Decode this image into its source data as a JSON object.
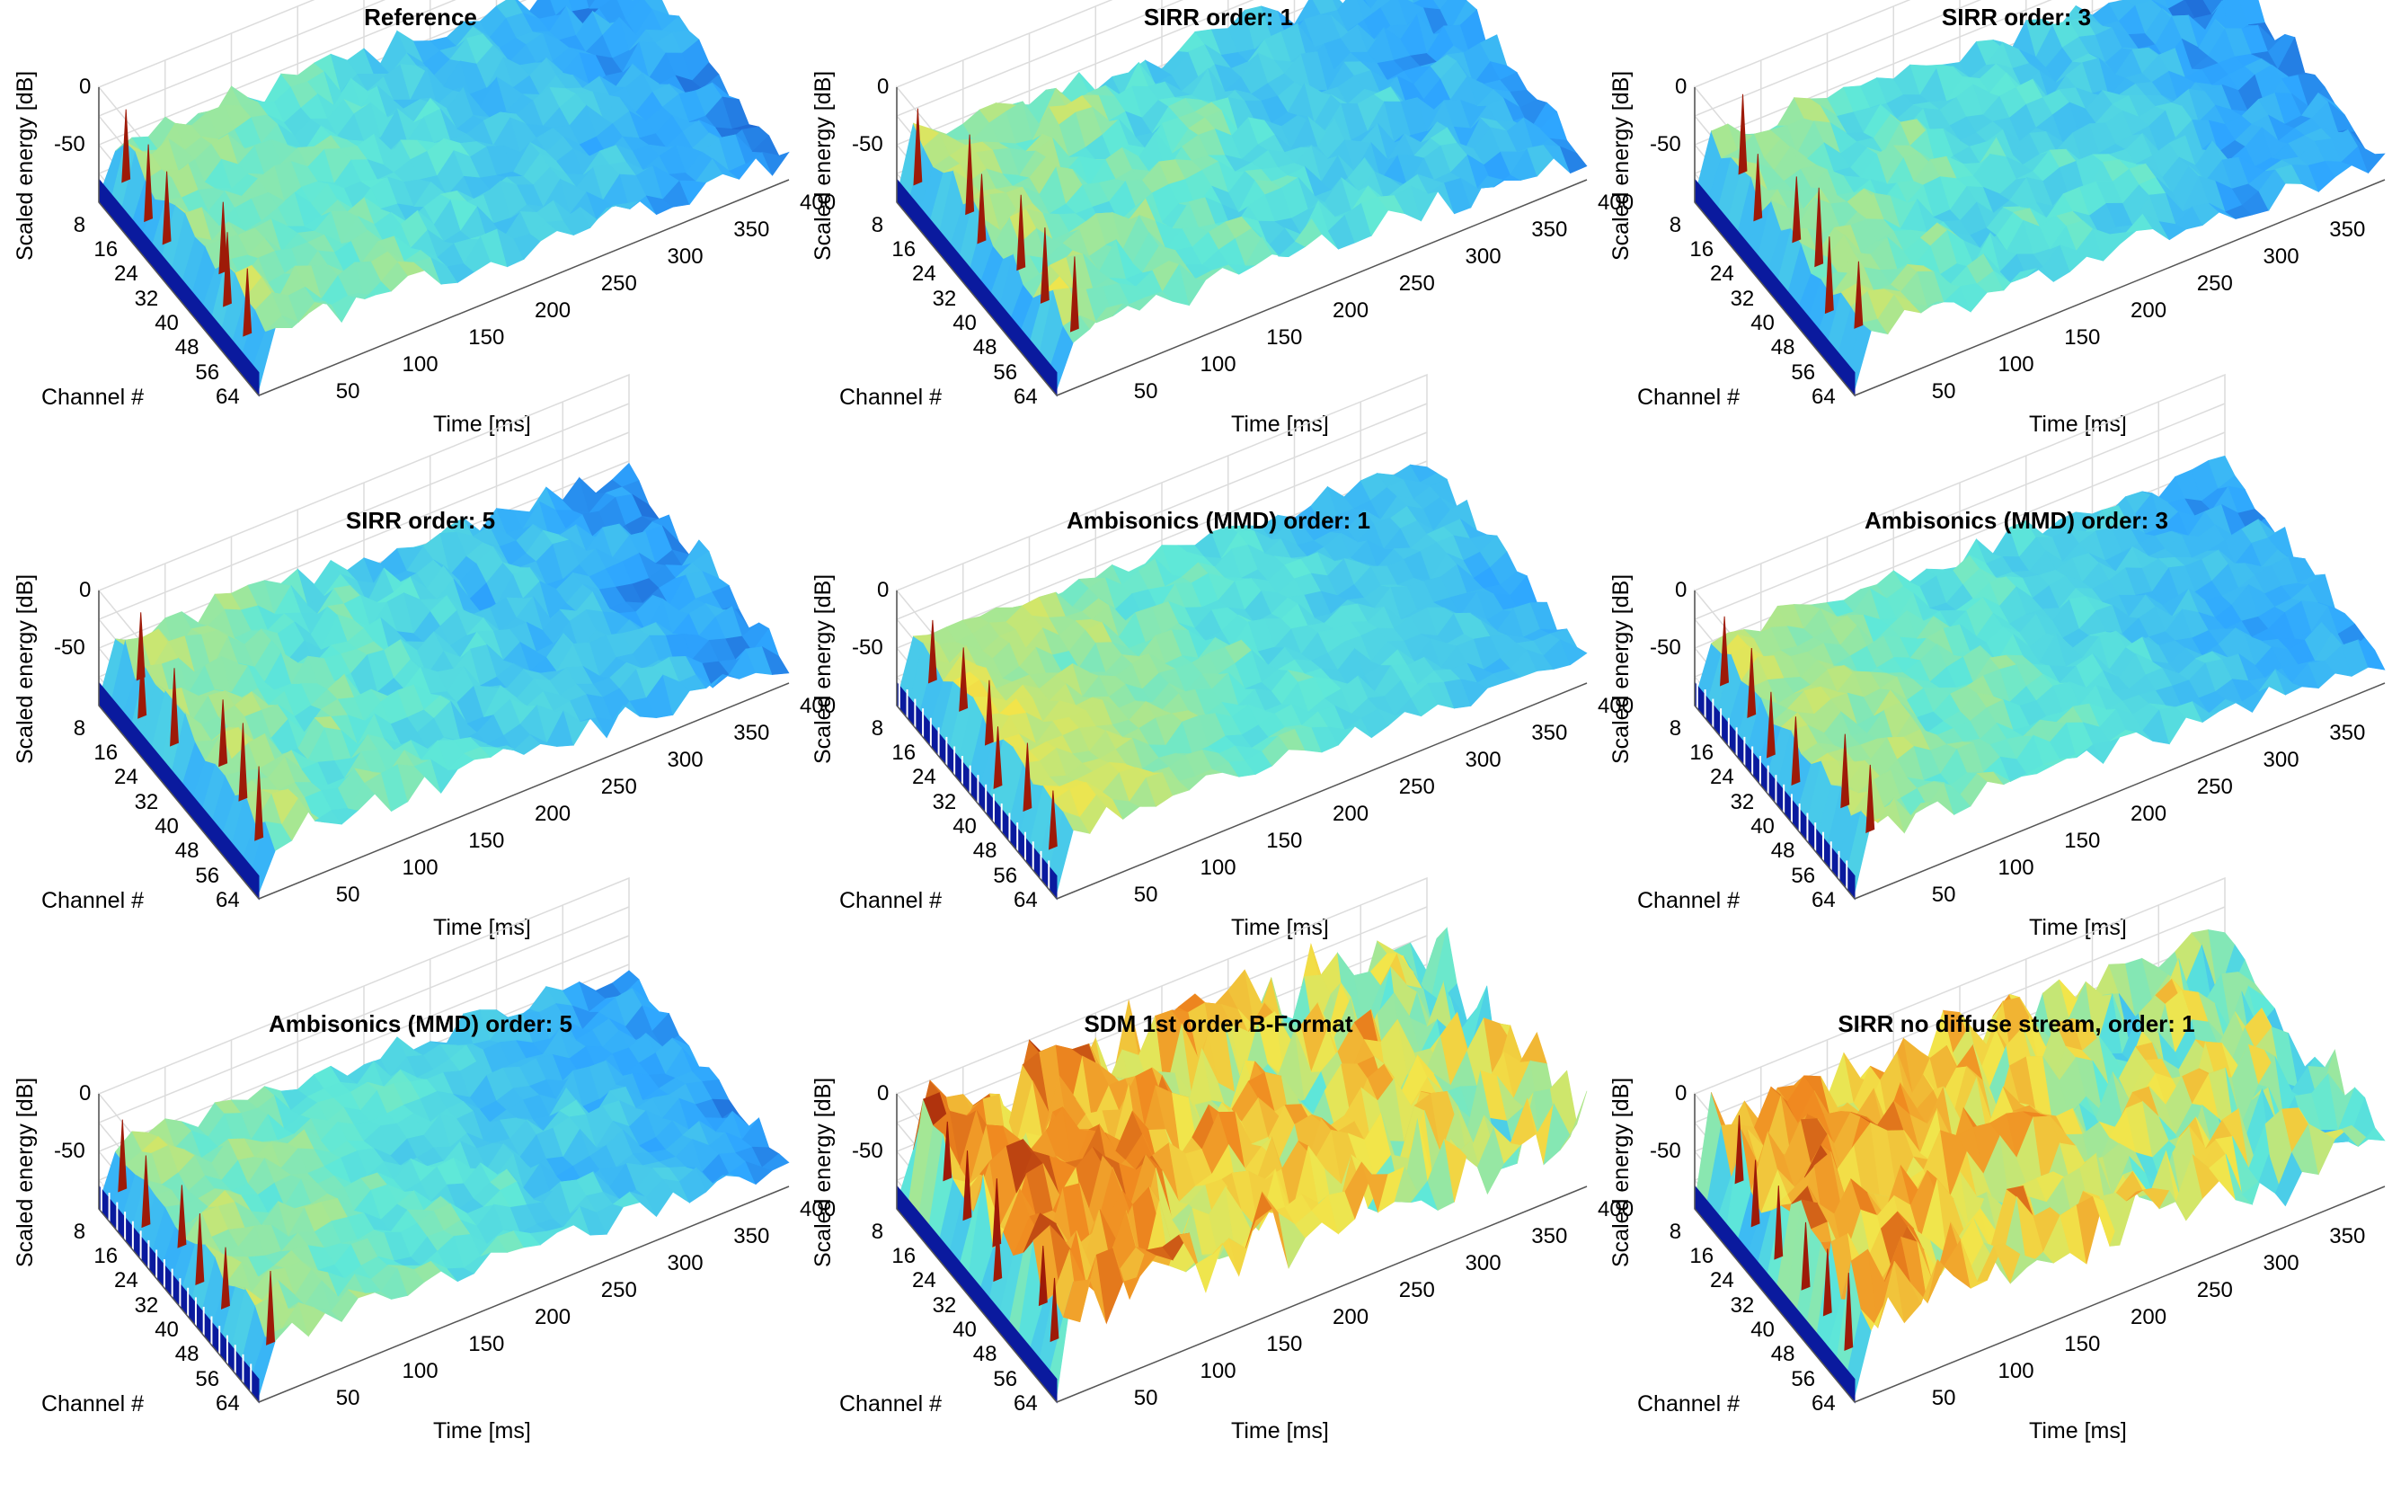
{
  "figure": {
    "colors": {
      "low": "#0a1a9e",
      "mid_low": "#2ea6ff",
      "mid": "#5fe8d8",
      "mid_high": "#f2e54a",
      "high": "#f08a20",
      "peak": "#9e1a08",
      "grid": "#dcdcdc",
      "axis": "#555555"
    }
  },
  "chart_data": [
    {
      "type": "surface",
      "title": "Reference",
      "xlabel": "Time [ms]",
      "ylabel": "Scaled energy [dB]",
      "channel_label": "Channel #",
      "x_ticks": [
        "50",
        "100",
        "150",
        "200",
        "250",
        "300",
        "350",
        "400"
      ],
      "channel_ticks": [
        "8",
        "16",
        "24",
        "32",
        "40",
        "48",
        "56",
        "64"
      ],
      "z_ticks": [
        "0",
        "-50"
      ],
      "xlim": [
        0,
        400
      ],
      "channel_range": [
        1,
        64
      ],
      "zlim": [
        -100,
        0
      ],
      "level": 0.5,
      "variance": 0.12,
      "peaks": 0.85,
      "direct_gaps": 0
    },
    {
      "type": "surface",
      "title": "SIRR order: 1",
      "xlabel": "Time [ms]",
      "ylabel": "Scaled energy [dB]",
      "channel_label": "Channel #",
      "x_ticks": [
        "50",
        "100",
        "150",
        "200",
        "250",
        "300",
        "350",
        "400"
      ],
      "channel_ticks": [
        "8",
        "16",
        "24",
        "32",
        "40",
        "48",
        "56",
        "64"
      ],
      "z_ticks": [
        "0",
        "-50"
      ],
      "xlim": [
        0,
        400
      ],
      "channel_range": [
        1,
        64
      ],
      "zlim": [
        -100,
        0
      ],
      "level": 0.52,
      "variance": 0.14,
      "peaks": 0.85,
      "direct_gaps": 0
    },
    {
      "type": "surface",
      "title": "SIRR order: 3",
      "xlabel": "Time [ms]",
      "ylabel": "Scaled energy [dB]",
      "channel_label": "Channel #",
      "x_ticks": [
        "50",
        "100",
        "150",
        "200",
        "250",
        "300",
        "350",
        "400"
      ],
      "channel_ticks": [
        "8",
        "16",
        "24",
        "32",
        "40",
        "48",
        "56",
        "64"
      ],
      "z_ticks": [
        "0",
        "-50"
      ],
      "xlim": [
        0,
        400
      ],
      "channel_range": [
        1,
        64
      ],
      "zlim": [
        -100,
        0
      ],
      "level": 0.5,
      "variance": 0.13,
      "peaks": 0.85,
      "direct_gaps": 0
    },
    {
      "type": "surface",
      "title": "SIRR order: 5",
      "xlabel": "Time [ms]",
      "ylabel": "Scaled energy [dB]",
      "channel_label": "Channel #",
      "x_ticks": [
        "50",
        "100",
        "150",
        "200",
        "250",
        "300",
        "350",
        "400"
      ],
      "channel_ticks": [
        "8",
        "16",
        "24",
        "32",
        "40",
        "48",
        "56",
        "64"
      ],
      "z_ticks": [
        "0",
        "-50"
      ],
      "xlim": [
        0,
        400
      ],
      "channel_range": [
        1,
        64
      ],
      "zlim": [
        -100,
        0
      ],
      "level": 0.5,
      "variance": 0.13,
      "peaks": 0.85,
      "direct_gaps": 0
    },
    {
      "type": "surface",
      "title": "Ambisonics (MMD) order: 1",
      "xlabel": "Time [ms]",
      "ylabel": "Scaled energy [dB]",
      "channel_label": "Channel #",
      "x_ticks": [
        "50",
        "100",
        "150",
        "200",
        "250",
        "300",
        "350",
        "400"
      ],
      "channel_ticks": [
        "8",
        "16",
        "24",
        "32",
        "40",
        "48",
        "56",
        "64"
      ],
      "z_ticks": [
        "0",
        "-50"
      ],
      "xlim": [
        0,
        400
      ],
      "channel_range": [
        1,
        64
      ],
      "zlim": [
        -100,
        0
      ],
      "level": 0.56,
      "variance": 0.1,
      "peaks": 0.6,
      "direct_gaps": 1
    },
    {
      "type": "surface",
      "title": "Ambisonics (MMD) order: 3",
      "xlabel": "Time [ms]",
      "ylabel": "Scaled energy [dB]",
      "channel_label": "Channel #",
      "x_ticks": [
        "50",
        "100",
        "150",
        "200",
        "250",
        "300",
        "350",
        "400"
      ],
      "channel_ticks": [
        "8",
        "16",
        "24",
        "32",
        "40",
        "48",
        "56",
        "64"
      ],
      "z_ticks": [
        "0",
        "-50"
      ],
      "xlim": [
        0,
        400
      ],
      "channel_range": [
        1,
        64
      ],
      "zlim": [
        -100,
        0
      ],
      "level": 0.53,
      "variance": 0.11,
      "peaks": 0.7,
      "direct_gaps": 1
    },
    {
      "type": "surface",
      "title": "Ambisonics (MMD) order: 5",
      "xlabel": "Time [ms]",
      "ylabel": "Scaled energy [dB]",
      "channel_label": "Channel #",
      "x_ticks": [
        "50",
        "100",
        "150",
        "200",
        "250",
        "300",
        "350",
        "400"
      ],
      "channel_ticks": [
        "8",
        "16",
        "24",
        "32",
        "40",
        "48",
        "56",
        "64"
      ],
      "z_ticks": [
        "0",
        "-50"
      ],
      "xlim": [
        0,
        400
      ],
      "channel_range": [
        1,
        64
      ],
      "zlim": [
        -100,
        0
      ],
      "level": 0.52,
      "variance": 0.11,
      "peaks": 0.7,
      "direct_gaps": 1
    },
    {
      "type": "surface",
      "title": "SDM 1st order B-Format",
      "xlabel": "Time [ms]",
      "ylabel": "Scaled energy [dB]",
      "channel_label": "Channel #",
      "x_ticks": [
        "50",
        "100",
        "150",
        "200",
        "250",
        "300",
        "350",
        "400"
      ],
      "channel_ticks": [
        "8",
        "16",
        "24",
        "32",
        "40",
        "48",
        "56",
        "64"
      ],
      "z_ticks": [
        "0",
        "-50"
      ],
      "xlim": [
        0,
        400
      ],
      "channel_range": [
        1,
        64
      ],
      "zlim": [
        -100,
        0
      ],
      "level": 0.8,
      "variance": 0.35,
      "peaks": 0.6,
      "direct_gaps": 0
    },
    {
      "type": "surface",
      "title": "SIRR no diffuse stream, order: 1",
      "xlabel": "Time [ms]",
      "ylabel": "Scaled energy [dB]",
      "channel_label": "Channel #",
      "x_ticks": [
        "50",
        "100",
        "150",
        "200",
        "250",
        "300",
        "350",
        "400"
      ],
      "channel_ticks": [
        "8",
        "16",
        "24",
        "32",
        "40",
        "48",
        "56",
        "64"
      ],
      "z_ticks": [
        "0",
        "-50"
      ],
      "xlim": [
        0,
        400
      ],
      "channel_range": [
        1,
        64
      ],
      "zlim": [
        -100,
        0
      ],
      "level": 0.74,
      "variance": 0.3,
      "peaks": 0.8,
      "direct_gaps": 0
    }
  ]
}
